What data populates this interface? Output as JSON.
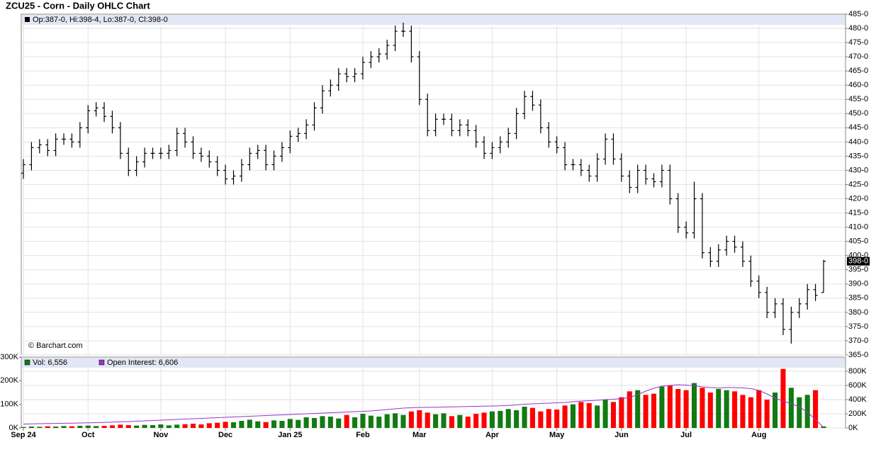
{
  "chart_data": [
    {
      "type": "ohlc",
      "title": "ZCU25 - Corn - Daily OHLC Chart",
      "legend": "Op:387-0, Hi:398-4, Lo:387-0, Cl:398-0",
      "source": "© Barchart.com",
      "color": "#000000",
      "grid": true,
      "open": [
        429,
        432,
        438,
        439,
        437,
        441,
        441,
        440,
        445,
        451,
        452,
        449,
        445,
        436,
        430,
        433,
        436,
        436,
        436,
        437,
        443,
        440,
        436,
        435,
        433,
        430,
        427,
        428,
        432,
        436,
        437,
        432,
        435,
        438,
        442,
        443,
        446,
        452,
        458,
        460,
        464,
        463,
        464,
        468,
        470,
        471,
        474,
        479,
        479,
        470,
        455,
        444,
        448,
        448,
        444,
        446,
        444,
        440,
        436,
        438,
        440,
        443,
        450,
        456,
        453,
        445,
        440,
        438,
        432,
        432,
        430,
        428,
        434,
        441,
        434,
        428,
        424,
        430,
        427,
        426,
        430,
        420,
        410,
        408,
        420,
        401,
        398,
        402,
        405,
        403,
        398,
        391,
        387,
        380,
        383,
        374,
        380,
        383,
        388,
        387
      ],
      "high": [
        434,
        440,
        441,
        441,
        443,
        443,
        443,
        447,
        453,
        454,
        454,
        451,
        447,
        438,
        435,
        438,
        438,
        438,
        439,
        445,
        445,
        442,
        438,
        437,
        435,
        432,
        430,
        434,
        438,
        439,
        439,
        437,
        440,
        444,
        445,
        448,
        454,
        460,
        462,
        466,
        466,
        466,
        470,
        472,
        473,
        476,
        481,
        482,
        481,
        472,
        457,
        450,
        450,
        450,
        448,
        448,
        446,
        442,
        440,
        442,
        445,
        452,
        458,
        458,
        455,
        447,
        442,
        440,
        434,
        434,
        432,
        436,
        443,
        443,
        436,
        430,
        432,
        432,
        429,
        432,
        432,
        422,
        412,
        426,
        422,
        403,
        404,
        407,
        407,
        405,
        400,
        393,
        389,
        385,
        385,
        382,
        385,
        390,
        390,
        398.5
      ],
      "low": [
        427,
        430,
        436,
        435,
        435,
        439,
        438,
        438,
        443,
        449,
        447,
        443,
        434,
        428,
        428,
        431,
        434,
        434,
        434,
        435,
        438,
        434,
        433,
        431,
        428,
        425,
        425,
        426,
        430,
        434,
        430,
        430,
        433,
        436,
        440,
        441,
        444,
        450,
        456,
        458,
        461,
        461,
        462,
        466,
        468,
        469,
        472,
        477,
        468,
        453,
        442,
        442,
        446,
        442,
        442,
        442,
        438,
        434,
        434,
        436,
        438,
        441,
        448,
        451,
        443,
        438,
        436,
        430,
        430,
        428,
        426,
        426,
        432,
        432,
        426,
        422,
        422,
        425,
        424,
        424,
        418,
        408,
        406,
        406,
        399,
        396,
        396,
        400,
        401,
        396,
        389,
        385,
        378,
        378,
        372,
        369,
        378,
        381,
        384,
        387
      ],
      "close": [
        432,
        438,
        439,
        437,
        441,
        441,
        440,
        445,
        451,
        452,
        449,
        445,
        436,
        430,
        433,
        436,
        436,
        436,
        437,
        443,
        440,
        436,
        435,
        433,
        430,
        427,
        428,
        432,
        436,
        437,
        432,
        435,
        438,
        442,
        443,
        446,
        452,
        458,
        460,
        464,
        463,
        464,
        468,
        470,
        471,
        474,
        479,
        479,
        470,
        455,
        444,
        448,
        448,
        444,
        446,
        444,
        440,
        436,
        438,
        440,
        443,
        450,
        456,
        453,
        445,
        440,
        438,
        432,
        432,
        430,
        428,
        434,
        441,
        434,
        428,
        424,
        430,
        427,
        426,
        430,
        420,
        410,
        408,
        420,
        401,
        398,
        402,
        405,
        403,
        398,
        391,
        387,
        380,
        383,
        374,
        380,
        383,
        388,
        386,
        398
      ],
      "ylim": [
        365,
        485
      ],
      "yticks": [
        {
          "value": 365,
          "label": "365-0"
        },
        {
          "value": 370,
          "label": "370-0"
        },
        {
          "value": 375,
          "label": "375-0"
        },
        {
          "value": 380,
          "label": "380-0"
        },
        {
          "value": 385,
          "label": "385-0"
        },
        {
          "value": 390,
          "label": "390-0"
        },
        {
          "value": 395,
          "label": "395-0"
        },
        {
          "value": 400,
          "label": "400-0"
        },
        {
          "value": 405,
          "label": "405-0"
        },
        {
          "value": 410,
          "label": "410-0"
        },
        {
          "value": 415,
          "label": "415-0"
        },
        {
          "value": 420,
          "label": "420-0"
        },
        {
          "value": 425,
          "label": "425-0"
        },
        {
          "value": 430,
          "label": "430-0"
        },
        {
          "value": 435,
          "label": "435-0"
        },
        {
          "value": 440,
          "label": "440-0"
        },
        {
          "value": 445,
          "label": "445-0"
        },
        {
          "value": 450,
          "label": "450-0"
        },
        {
          "value": 455,
          "label": "455-0"
        },
        {
          "value": 460,
          "label": "460-0"
        },
        {
          "value": 465,
          "label": "465-0"
        },
        {
          "value": 470,
          "label": "470-0"
        },
        {
          "value": 475,
          "label": "475-0"
        },
        {
          "value": 480,
          "label": "480-0"
        },
        {
          "value": 485,
          "label": "485-0"
        }
      ],
      "last_price": {
        "value": 398,
        "label": "398-0"
      }
    },
    {
      "type": "bar",
      "categories": [
        "Sep 24",
        null,
        null,
        null,
        null,
        null,
        null,
        null,
        "Oct",
        null,
        null,
        null,
        null,
        null,
        null,
        null,
        null,
        "Nov",
        null,
        null,
        null,
        null,
        null,
        null,
        null,
        "Dec",
        null,
        null,
        null,
        null,
        null,
        null,
        null,
        "Jan 25",
        null,
        null,
        null,
        null,
        null,
        null,
        null,
        null,
        "Feb",
        null,
        null,
        null,
        null,
        null,
        null,
        "Mar",
        null,
        null,
        null,
        null,
        null,
        null,
        null,
        null,
        "Apr",
        null,
        null,
        null,
        null,
        null,
        null,
        null,
        "May",
        null,
        null,
        null,
        null,
        null,
        null,
        null,
        "Jun",
        null,
        null,
        null,
        null,
        null,
        null,
        null,
        "Jul",
        null,
        null,
        null,
        null,
        null,
        null,
        null,
        null,
        "Aug",
        null,
        null,
        null,
        null,
        null,
        null,
        null,
        null
      ],
      "series": [
        {
          "name": "Vol: 6,556",
          "up_color": "#127a12",
          "down_color": "#ff0000",
          "legend_color": "#127a12",
          "values": [
            4000,
            6000,
            5000,
            7000,
            6000,
            8000,
            7000,
            9000,
            10000,
            8000,
            9000,
            11000,
            14000,
            12000,
            10000,
            13000,
            12000,
            15000,
            11000,
            14000,
            16000,
            18000,
            15000,
            20000,
            22000,
            26000,
            24000,
            30000,
            35000,
            28000,
            25000,
            32000,
            30000,
            38000,
            34000,
            45000,
            42000,
            50000,
            48000,
            40000,
            55000,
            45000,
            60000,
            52000,
            48000,
            58000,
            62000,
            55000,
            70000,
            75000,
            65000,
            58000,
            62000,
            50000,
            55000,
            48000,
            60000,
            65000,
            70000,
            72000,
            80000,
            75000,
            90000,
            85000,
            70000,
            80000,
            78000,
            95000,
            100000,
            110000,
            105000,
            95000,
            120000,
            110000,
            130000,
            155000,
            160000,
            140000,
            145000,
            175000,
            180000,
            165000,
            160000,
            190000,
            170000,
            150000,
            165000,
            160000,
            155000,
            140000,
            130000,
            160000,
            120000,
            150000,
            250000,
            170000,
            130000,
            140000,
            160000,
            6556
          ]
        },
        {
          "name": "Open Interest: 6,606",
          "color": "#9933cc",
          "axis": "y2",
          "type": "line",
          "values": [
            55000,
            58000,
            60000,
            62000,
            64000,
            66000,
            68000,
            70000,
            72000,
            75000,
            78000,
            82000,
            86000,
            90000,
            95000,
            100000,
            105000,
            110000,
            115000,
            120000,
            125000,
            130000,
            135000,
            140000,
            145000,
            150000,
            155000,
            160000,
            165000,
            170000,
            175000,
            180000,
            185000,
            190000,
            195000,
            200000,
            205000,
            210000,
            215000,
            220000,
            225000,
            230000,
            235000,
            240000,
            250000,
            260000,
            270000,
            280000,
            285000,
            290000,
            290000,
            292000,
            295000,
            298000,
            300000,
            302000,
            305000,
            308000,
            310000,
            312000,
            318000,
            325000,
            335000,
            340000,
            345000,
            350000,
            355000,
            360000,
            370000,
            380000,
            385000,
            390000,
            400000,
            405000,
            415000,
            430000,
            470000,
            520000,
            560000,
            590000,
            600000,
            610000,
            605000,
            595000,
            580000,
            570000,
            565000,
            570000,
            570000,
            565000,
            555000,
            530000,
            480000,
            420000,
            380000,
            340000,
            300000,
            220000,
            120000,
            6606
          ]
        }
      ],
      "ylim": [
        0,
        300000
      ],
      "yticks": [
        {
          "value": 0,
          "label": "0K"
        },
        {
          "value": 100000,
          "label": "100K"
        },
        {
          "value": 200000,
          "label": "200K"
        },
        {
          "value": 300000,
          "label": "300K"
        }
      ],
      "y2lim": [
        0,
        1000000
      ],
      "y2ticks": [
        {
          "value": 0,
          "label": "0K"
        },
        {
          "value": 200000,
          "label": "200K"
        },
        {
          "value": 400000,
          "label": "400K"
        },
        {
          "value": 600000,
          "label": "600K"
        },
        {
          "value": 800000,
          "label": "800K"
        }
      ]
    }
  ]
}
